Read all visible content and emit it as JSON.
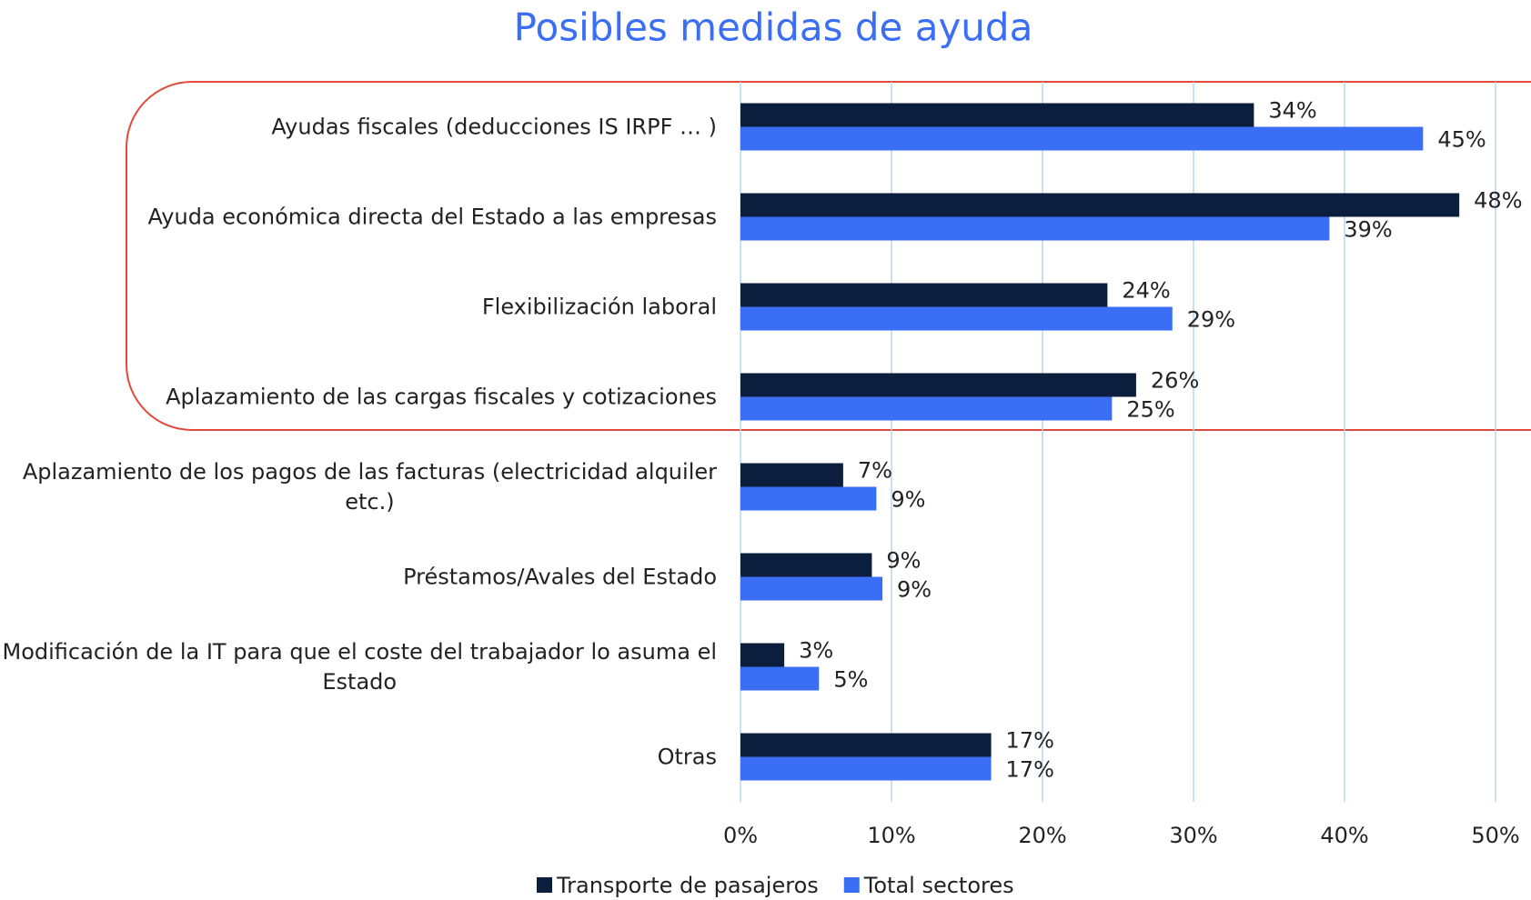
{
  "chart_data": {
    "type": "bar",
    "orientation": "horizontal",
    "title": "Posibles medidas de ayuda",
    "categories": [
      "Ayudas fiscales (deducciones IS IRPF  … )",
      "Ayuda económica directa del Estado a las empresas",
      "Flexibilización laboral",
      "Aplazamiento de las cargas fiscales y cotizaciones",
      "Aplazamiento de los pagos de las facturas (electricidad alquiler\netc.)",
      "Préstamos/Avales del Estado",
      "Modificación de la IT para que el coste del trabajador lo asuma el\nEstado",
      "Otras"
    ],
    "series": [
      {
        "name": "Transporte de pasajeros",
        "color": "#0c1e3e",
        "values": [
          34.0,
          47.6,
          24.3,
          26.2,
          6.8,
          8.7,
          2.9,
          16.6
        ],
        "value_labels": [
          "34%",
          "48%",
          "24%",
          "26%",
          "7%",
          "9%",
          "3%",
          "17%"
        ]
      },
      {
        "name": "Total sectores",
        "color": "#3a6ef5",
        "values": [
          45.2,
          39.0,
          28.6,
          24.6,
          9.0,
          9.4,
          5.2,
          16.6
        ],
        "value_labels": [
          "45%",
          "39%",
          "29%",
          "25%",
          "9%",
          "9%",
          "5%",
          "17%"
        ]
      }
    ],
    "xlim": [
      0,
      50
    ],
    "xticks": [
      {
        "value": 0,
        "label": "0%"
      },
      {
        "value": 10,
        "label": "10%"
      },
      {
        "value": 20,
        "label": "20%"
      },
      {
        "value": 30,
        "label": "30%"
      },
      {
        "value": 40,
        "label": "40%"
      },
      {
        "value": 50,
        "label": "50%"
      }
    ],
    "grid": true,
    "legend": "bottom"
  }
}
